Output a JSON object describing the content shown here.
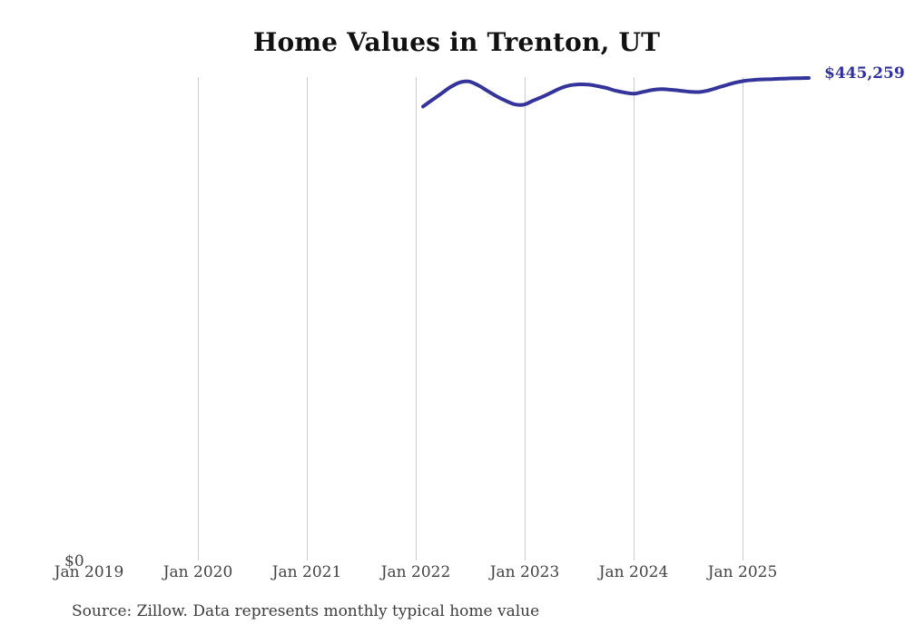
{
  "title": "Home Values in Trenton, UT",
  "end_label": "$445,259",
  "y_axis": {
    "zero_label": "$0"
  },
  "x_axis": {
    "tick_labels": [
      "Jan 2019",
      "Jan 2020",
      "Jan 2021",
      "Jan 2022",
      "Jan 2023",
      "Jan 2024",
      "Jan 2025"
    ]
  },
  "source": "Source: Zillow. Data represents monthly typical home value",
  "colors": {
    "line": "#34349b",
    "value_label": "#31319b",
    "gridline": "#cccccc",
    "title_text": "#111111",
    "axis_text": "#434343"
  },
  "chart_data": {
    "type": "line",
    "title": "Home Values in Trenton, UT",
    "series_name": "Monthly typical home value (USD)",
    "x": [
      "Feb 2022",
      "Mar 2022",
      "Apr 2022",
      "May 2022",
      "Jun 2022",
      "Jul 2022",
      "Aug 2022",
      "Sep 2022",
      "Oct 2022",
      "Nov 2022",
      "Dec 2022",
      "Jan 2023",
      "Feb 2023",
      "Mar 2023",
      "Apr 2023",
      "May 2023",
      "Jun 2023",
      "Jul 2023",
      "Aug 2023",
      "Sep 2023",
      "Oct 2023",
      "Nov 2023",
      "Dec 2023",
      "Jan 2024",
      "Feb 2024",
      "Mar 2024",
      "Apr 2024",
      "May 2024",
      "Jun 2024",
      "Jul 2024",
      "Aug 2024",
      "Sep 2024",
      "Oct 2024",
      "Nov 2024",
      "Dec 2024",
      "Jan 2025",
      "Feb 2025",
      "Mar 2025",
      "Apr 2025",
      "May 2025",
      "Jun 2025",
      "Jul 2025",
      "Aug 2025"
    ],
    "values": [
      419000,
      425000,
      431000,
      437000,
      441200,
      442100,
      438600,
      433500,
      428500,
      424300,
      421000,
      420800,
      424500,
      428000,
      432000,
      436000,
      438500,
      439400,
      439200,
      437800,
      436000,
      433500,
      431800,
      430900,
      432600,
      434300,
      435100,
      434400,
      433600,
      432700,
      432300,
      433700,
      436200,
      438700,
      441000,
      442700,
      443500,
      444000,
      444300,
      444600,
      444900,
      445100,
      445259
    ],
    "last_value_label": "$445,259",
    "xlabel": "",
    "ylabel": "",
    "ylim": [
      0,
      445259
    ],
    "x_axis_tick_labels": [
      "Jan 2019",
      "Jan 2020",
      "Jan 2021",
      "Jan 2022",
      "Jan 2023",
      "Jan 2024",
      "Jan 2025"
    ],
    "grid": "vertical-yearly-gridlines",
    "legend": "none"
  }
}
